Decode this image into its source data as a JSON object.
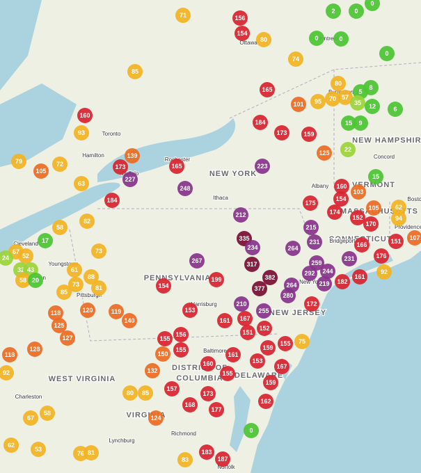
{
  "place_labels": [
    "NEW HAMPSHIRE",
    "VERMONT",
    "MASSACHUSETTS",
    "CONNECTICUT",
    "NEW YORK",
    "PENNSYLVANIA",
    "NEW JERSEY",
    "DELAWARE",
    "DISTRICT OF",
    "COLUMBIA",
    "WEST VIRGINIA",
    "VIRGINIA",
    "Ottawa",
    "Montreal",
    "Toronto",
    "Hamilton",
    "Buffalo",
    "Rochester",
    "Burlington",
    "Concord",
    "Albany",
    "Providence",
    "Boston",
    "Bridgeport",
    "New York",
    "Ithaca",
    "Harrisburg",
    "Baltimore",
    "Pittsburgh",
    "Cleveland",
    "Youngstown",
    "Canton",
    "Charleston",
    "Lynchburg",
    "Richmond",
    "Norfolk"
  ],
  "aqi_readings": [
    71,
    156,
    154,
    80,
    2,
    0,
    0,
    0,
    0,
    0,
    74,
    85,
    165,
    80,
    8,
    5,
    70,
    57,
    35,
    12,
    95,
    101,
    160,
    184,
    173,
    159,
    6,
    15,
    9,
    93,
    125,
    22,
    79,
    105,
    72,
    139,
    173,
    165,
    227,
    223,
    63,
    248,
    15,
    160,
    103,
    154,
    175,
    184,
    212,
    174,
    105,
    62,
    82,
    58,
    152,
    170,
    94,
    215,
    335,
    17,
    67,
    52,
    264,
    231,
    166,
    151,
    107,
    234,
    73,
    24,
    176,
    267,
    317,
    61,
    88,
    259,
    244,
    231,
    32,
    43,
    58,
    20,
    292,
    92,
    382,
    199,
    73,
    81,
    154,
    377,
    264,
    182,
    161,
    85,
    280,
    219,
    172,
    210,
    255,
    120,
    119,
    118,
    153,
    140,
    125,
    161,
    167,
    152,
    151,
    127,
    155,
    156,
    159,
    155,
    75,
    118,
    128,
    150,
    155,
    161,
    160,
    153,
    167,
    132,
    155,
    92,
    159,
    157,
    173,
    162,
    80,
    85,
    168,
    177,
    67,
    58,
    124,
    62,
    53,
    76,
    81,
    183,
    187,
    83,
    0
  ]
}
